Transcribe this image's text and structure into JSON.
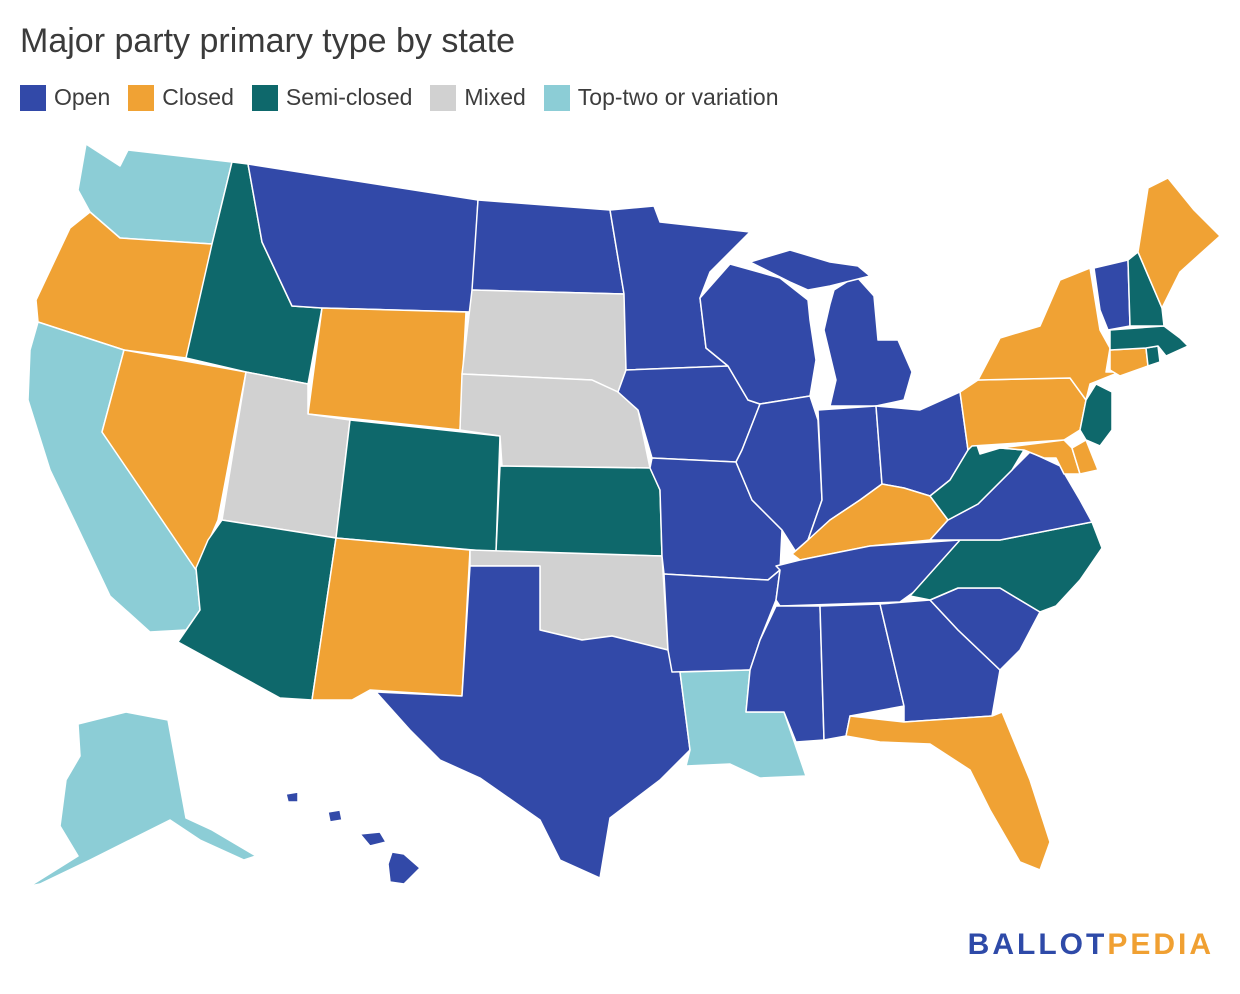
{
  "title": "Major party primary type by state",
  "legend": [
    {
      "key": "open",
      "label": "Open",
      "color": "#3249a8"
    },
    {
      "key": "closed",
      "label": "Closed",
      "color": "#f0a234"
    },
    {
      "key": "semi",
      "label": "Semi-closed",
      "color": "#0e686b"
    },
    {
      "key": "mixed",
      "label": "Mixed",
      "color": "#d1d1d1"
    },
    {
      "key": "toptwo",
      "label": "Top-two or variation",
      "color": "#8ccdd6"
    }
  ],
  "states": {
    "WA": "toptwo",
    "OR": "closed",
    "CA": "toptwo",
    "NV": "closed",
    "ID": "semi",
    "MT": "open",
    "WY": "closed",
    "UT": "mixed",
    "AZ": "semi",
    "CO": "semi",
    "NM": "closed",
    "ND": "open",
    "SD": "mixed",
    "NE": "mixed",
    "KS": "semi",
    "OK": "mixed",
    "TX": "open",
    "MN": "open",
    "IA": "open",
    "MO": "open",
    "AR": "open",
    "LA": "toptwo",
    "WI": "open",
    "IL": "open",
    "MI": "open",
    "IN": "open",
    "OH": "open",
    "KY": "closed",
    "TN": "open",
    "MS": "open",
    "AL": "open",
    "GA": "open",
    "FL": "closed",
    "SC": "open",
    "NC": "semi",
    "VA": "open",
    "WV": "semi",
    "PA": "closed",
    "NY": "closed",
    "VT": "open",
    "NH": "semi",
    "ME": "closed",
    "MA": "semi",
    "RI": "semi",
    "CT": "closed",
    "NJ": "semi",
    "DE": "closed",
    "MD": "closed",
    "AK": "toptwo",
    "HI": "open"
  },
  "brand": {
    "part1": "BALLOT",
    "part2": "PEDIA"
  }
}
